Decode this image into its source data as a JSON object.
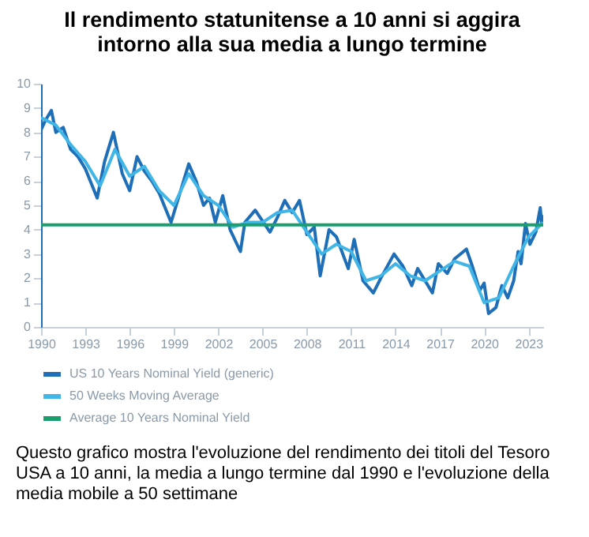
{
  "chart_data": {
    "type": "line",
    "title": "Il rendimento statunitense a 10 anni si aggira intorno alla sua media a lungo termine",
    "xlim": [
      1990,
      2024
    ],
    "xticks": [
      1990,
      1993,
      1996,
      1999,
      2002,
      2005,
      2008,
      2011,
      2014,
      2017,
      2020,
      2023
    ],
    "ylim": [
      0,
      10
    ],
    "yticks": [
      0,
      1,
      2,
      3,
      4,
      5,
      6,
      7,
      8,
      9,
      10
    ],
    "grid": false,
    "legend": "bottom",
    "annotations": [
      "Questo grafico mostra l'evoluzione del rendimento dei titoli del Tesoro USA a 10 anni, la media a lungo termine dal 1990 e l'evoluzione della media mobile a 50 settimane"
    ],
    "series": [
      {
        "name": "US 10 Years Nominal Yield (generic)",
        "color": "#1f6fb8",
        "x": [
          1990,
          1990.3,
          1990.7,
          1991,
          1991.5,
          1992,
          1992.5,
          1993,
          1993.8,
          1994.3,
          1994.9,
          1995.5,
          1996,
          1996.5,
          1997,
          1997.5,
          1998,
          1998.8,
          1999.3,
          2000,
          2000.5,
          2001,
          2001.4,
          2001.8,
          2002.3,
          2002.8,
          2003.5,
          2003.8,
          2004.5,
          2005.5,
          2006,
          2006.5,
          2007,
          2007.5,
          2008,
          2008.5,
          2008.9,
          2009.5,
          2010,
          2010.8,
          2011.2,
          2011.8,
          2012.5,
          2013,
          2013.9,
          2014.5,
          2015.1,
          2015.5,
          2016.5,
          2016.9,
          2017.5,
          2018,
          2018.8,
          2019.2,
          2019.7,
          2020,
          2020.3,
          2020.8,
          2021.2,
          2021.6,
          2022,
          2022.3,
          2022.5,
          2022.8,
          2023.1,
          2023.5,
          2023.8,
          2023.9,
          2024
        ],
        "values": [
          8.1,
          8.5,
          8.9,
          8.0,
          8.2,
          7.3,
          7.0,
          6.5,
          5.3,
          6.8,
          8.0,
          6.3,
          5.6,
          7.0,
          6.4,
          6.0,
          5.5,
          4.3,
          5.3,
          6.7,
          6.0,
          5.0,
          5.3,
          4.3,
          5.4,
          4.0,
          3.1,
          4.3,
          4.8,
          3.9,
          4.5,
          5.2,
          4.7,
          5.2,
          3.8,
          4.1,
          2.1,
          4.0,
          3.7,
          2.4,
          3.6,
          1.9,
          1.4,
          2.0,
          3.0,
          2.5,
          1.7,
          2.4,
          1.4,
          2.6,
          2.2,
          2.8,
          3.2,
          2.5,
          1.5,
          1.8,
          0.55,
          0.8,
          1.7,
          1.2,
          1.9,
          3.1,
          2.6,
          4.25,
          3.4,
          3.9,
          4.9,
          4.2,
          4.6
        ]
      },
      {
        "name": "50 Weeks Moving Average",
        "color": "#41b6e6",
        "x": [
          1990,
          1991,
          1992,
          1993,
          1994,
          1995,
          1996,
          1997,
          1998,
          1999,
          2000,
          2001,
          2002,
          2003,
          2004,
          2005,
          2006,
          2007,
          2008,
          2009,
          2010,
          2011,
          2012,
          2013,
          2014,
          2015,
          2016,
          2017,
          2018,
          2019,
          2020,
          2021,
          2022,
          2023,
          2024
        ],
        "values": [
          8.6,
          8.3,
          7.5,
          6.8,
          5.8,
          7.3,
          6.2,
          6.6,
          5.6,
          5.0,
          6.3,
          5.4,
          5.0,
          4.1,
          4.3,
          4.3,
          4.7,
          4.8,
          3.9,
          3.0,
          3.4,
          3.1,
          1.9,
          2.1,
          2.6,
          2.1,
          1.9,
          2.3,
          2.7,
          2.5,
          1.0,
          1.2,
          2.5,
          3.7,
          4.3
        ]
      },
      {
        "name": "Average 10 Years Nominal Yield",
        "color": "#1a9e6e",
        "x": [
          1990,
          2024
        ],
        "values": [
          4.2,
          4.2
        ]
      }
    ]
  }
}
